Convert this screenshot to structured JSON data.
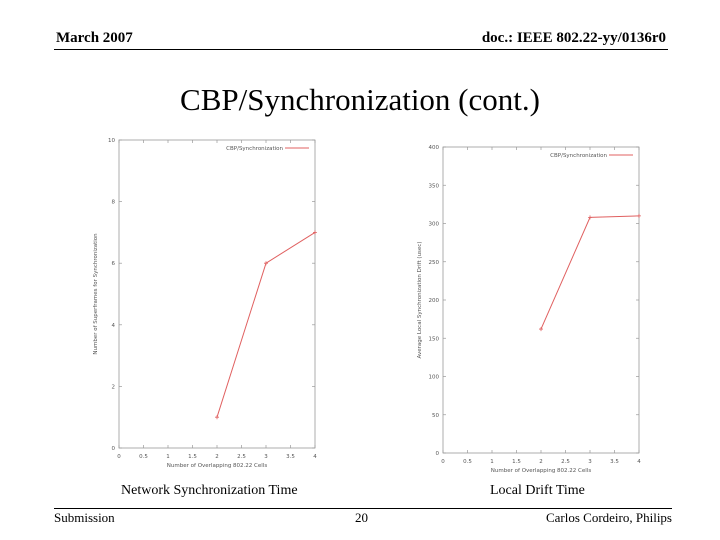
{
  "header": {
    "date": "March 2007",
    "doc_id": "doc.: IEEE 802.22-yy/0136r0"
  },
  "slide": {
    "title": "CBP/Synchronization (cont.)"
  },
  "chart_data": [
    {
      "type": "line",
      "caption": "Network Synchronization Time",
      "xlabel": "Number of Overlapping 802.22 Cells",
      "ylabel": "Number of Superframes for Synchronization",
      "legend": "CBP/Synchronization",
      "legend_position": "top-right",
      "xlim": [
        0,
        4
      ],
      "ylim": [
        0,
        10
      ],
      "x_ticks": [
        "0",
        "0.5",
        "1",
        "1.5",
        "2",
        "2.5",
        "3",
        "3.5",
        "4"
      ],
      "y_ticks": [
        "0",
        "2",
        "4",
        "6",
        "8",
        "10"
      ],
      "series": [
        {
          "x": [
            2,
            3,
            4
          ],
          "y": [
            1,
            6,
            7
          ]
        }
      ],
      "color": "#e06060"
    },
    {
      "type": "line",
      "caption": "Local Drift Time",
      "xlabel": "Number of Overlapping 802.22 Cells",
      "ylabel": "Average Local Synchronization Drift (usec)",
      "legend": "CBP/Synchronization",
      "legend_position": "top-right",
      "xlim": [
        0,
        4
      ],
      "ylim": [
        0,
        400
      ],
      "x_ticks": [
        "0",
        "0.5",
        "1",
        "1.5",
        "2",
        "2.5",
        "3",
        "3.5",
        "4"
      ],
      "y_ticks": [
        "0",
        "50",
        "100",
        "150",
        "200",
        "250",
        "300",
        "350",
        "400"
      ],
      "series": [
        {
          "x": [
            2,
            3,
            4
          ],
          "y": [
            162,
            308,
            310
          ]
        }
      ],
      "color": "#e06060"
    }
  ],
  "footer": {
    "left": "Submission",
    "page": "20",
    "author": "Carlos Cordeiro, Philips"
  }
}
